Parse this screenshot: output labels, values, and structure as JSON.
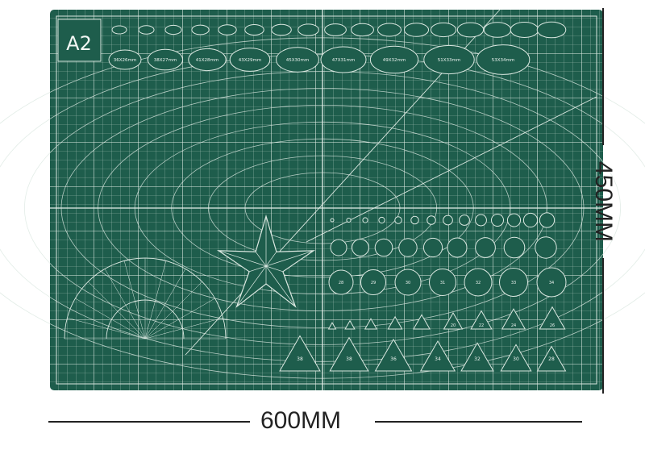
{
  "product": {
    "size_badge": "A2",
    "width_label": "600MM",
    "height_label": "450MM",
    "colors": {
      "mat": "#1e5d4c",
      "line": "#d8e6df",
      "dimension": "#222222"
    }
  },
  "ellipses_large": [
    "36X26mm",
    "38X27mm",
    "41X28mm",
    "43X29mm",
    "45X30mm",
    "47X31mm",
    "49X32mm",
    "51X33mm",
    "53X34mm"
  ],
  "ellipses_small_count": 17,
  "circles_small_count": 14,
  "circles_medium_count": 9,
  "circles_large": [
    "28",
    "29",
    "30",
    "31",
    "32",
    "33",
    "34"
  ],
  "triangles_small": [
    "",
    "",
    "",
    "",
    "",
    "20",
    "22",
    "24",
    "26"
  ],
  "triangles_large": [
    "38",
    "38",
    "36",
    "34",
    "32",
    "30",
    "28"
  ]
}
